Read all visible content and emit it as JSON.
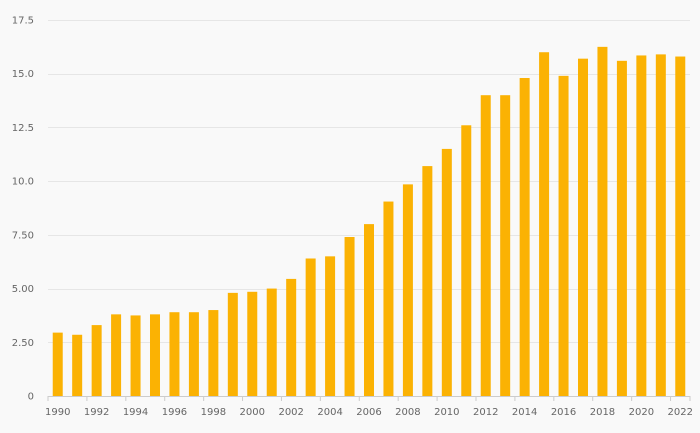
{
  "chart_data": {
    "type": "bar",
    "title": "",
    "xlabel": "",
    "ylabel": "",
    "categories": [
      "1990",
      "1991",
      "1992",
      "1993",
      "1994",
      "1995",
      "1996",
      "1997",
      "1998",
      "1999",
      "2000",
      "2001",
      "2002",
      "2003",
      "2004",
      "2005",
      "2006",
      "2007",
      "2008",
      "2009",
      "2010",
      "2011",
      "2012",
      "2013",
      "2014",
      "2015",
      "2016",
      "2017",
      "2018",
      "2019",
      "2020",
      "2021",
      "2022"
    ],
    "values": [
      2.95,
      2.85,
      3.3,
      3.8,
      3.75,
      3.8,
      3.9,
      3.9,
      4.0,
      4.8,
      4.85,
      5.0,
      5.45,
      6.4,
      6.5,
      7.4,
      8.0,
      9.05,
      9.85,
      10.7,
      11.5,
      12.6,
      14.0,
      14.0,
      14.8,
      16.0,
      14.9,
      15.7,
      16.25,
      15.6,
      15.85,
      15.9,
      15.8
    ],
    "ylim": [
      0,
      17.5
    ],
    "y_ticks": [
      0,
      2.5,
      5.0,
      7.5,
      10.0,
      12.5,
      15.0,
      17.5
    ],
    "y_tick_labels": [
      "0",
      "2.50",
      "5.00",
      "7.50",
      "10.0",
      "12.5",
      "15.0",
      "17.5"
    ],
    "x_tick_labels": [
      "1990",
      "1992",
      "1994",
      "1996",
      "1998",
      "2000",
      "2002",
      "2004",
      "2006",
      "2008",
      "2010",
      "2012",
      "2014",
      "2016",
      "2018",
      "2020",
      "2022"
    ],
    "bar_color": "#fbb203",
    "grid": true,
    "legend": "none"
  }
}
